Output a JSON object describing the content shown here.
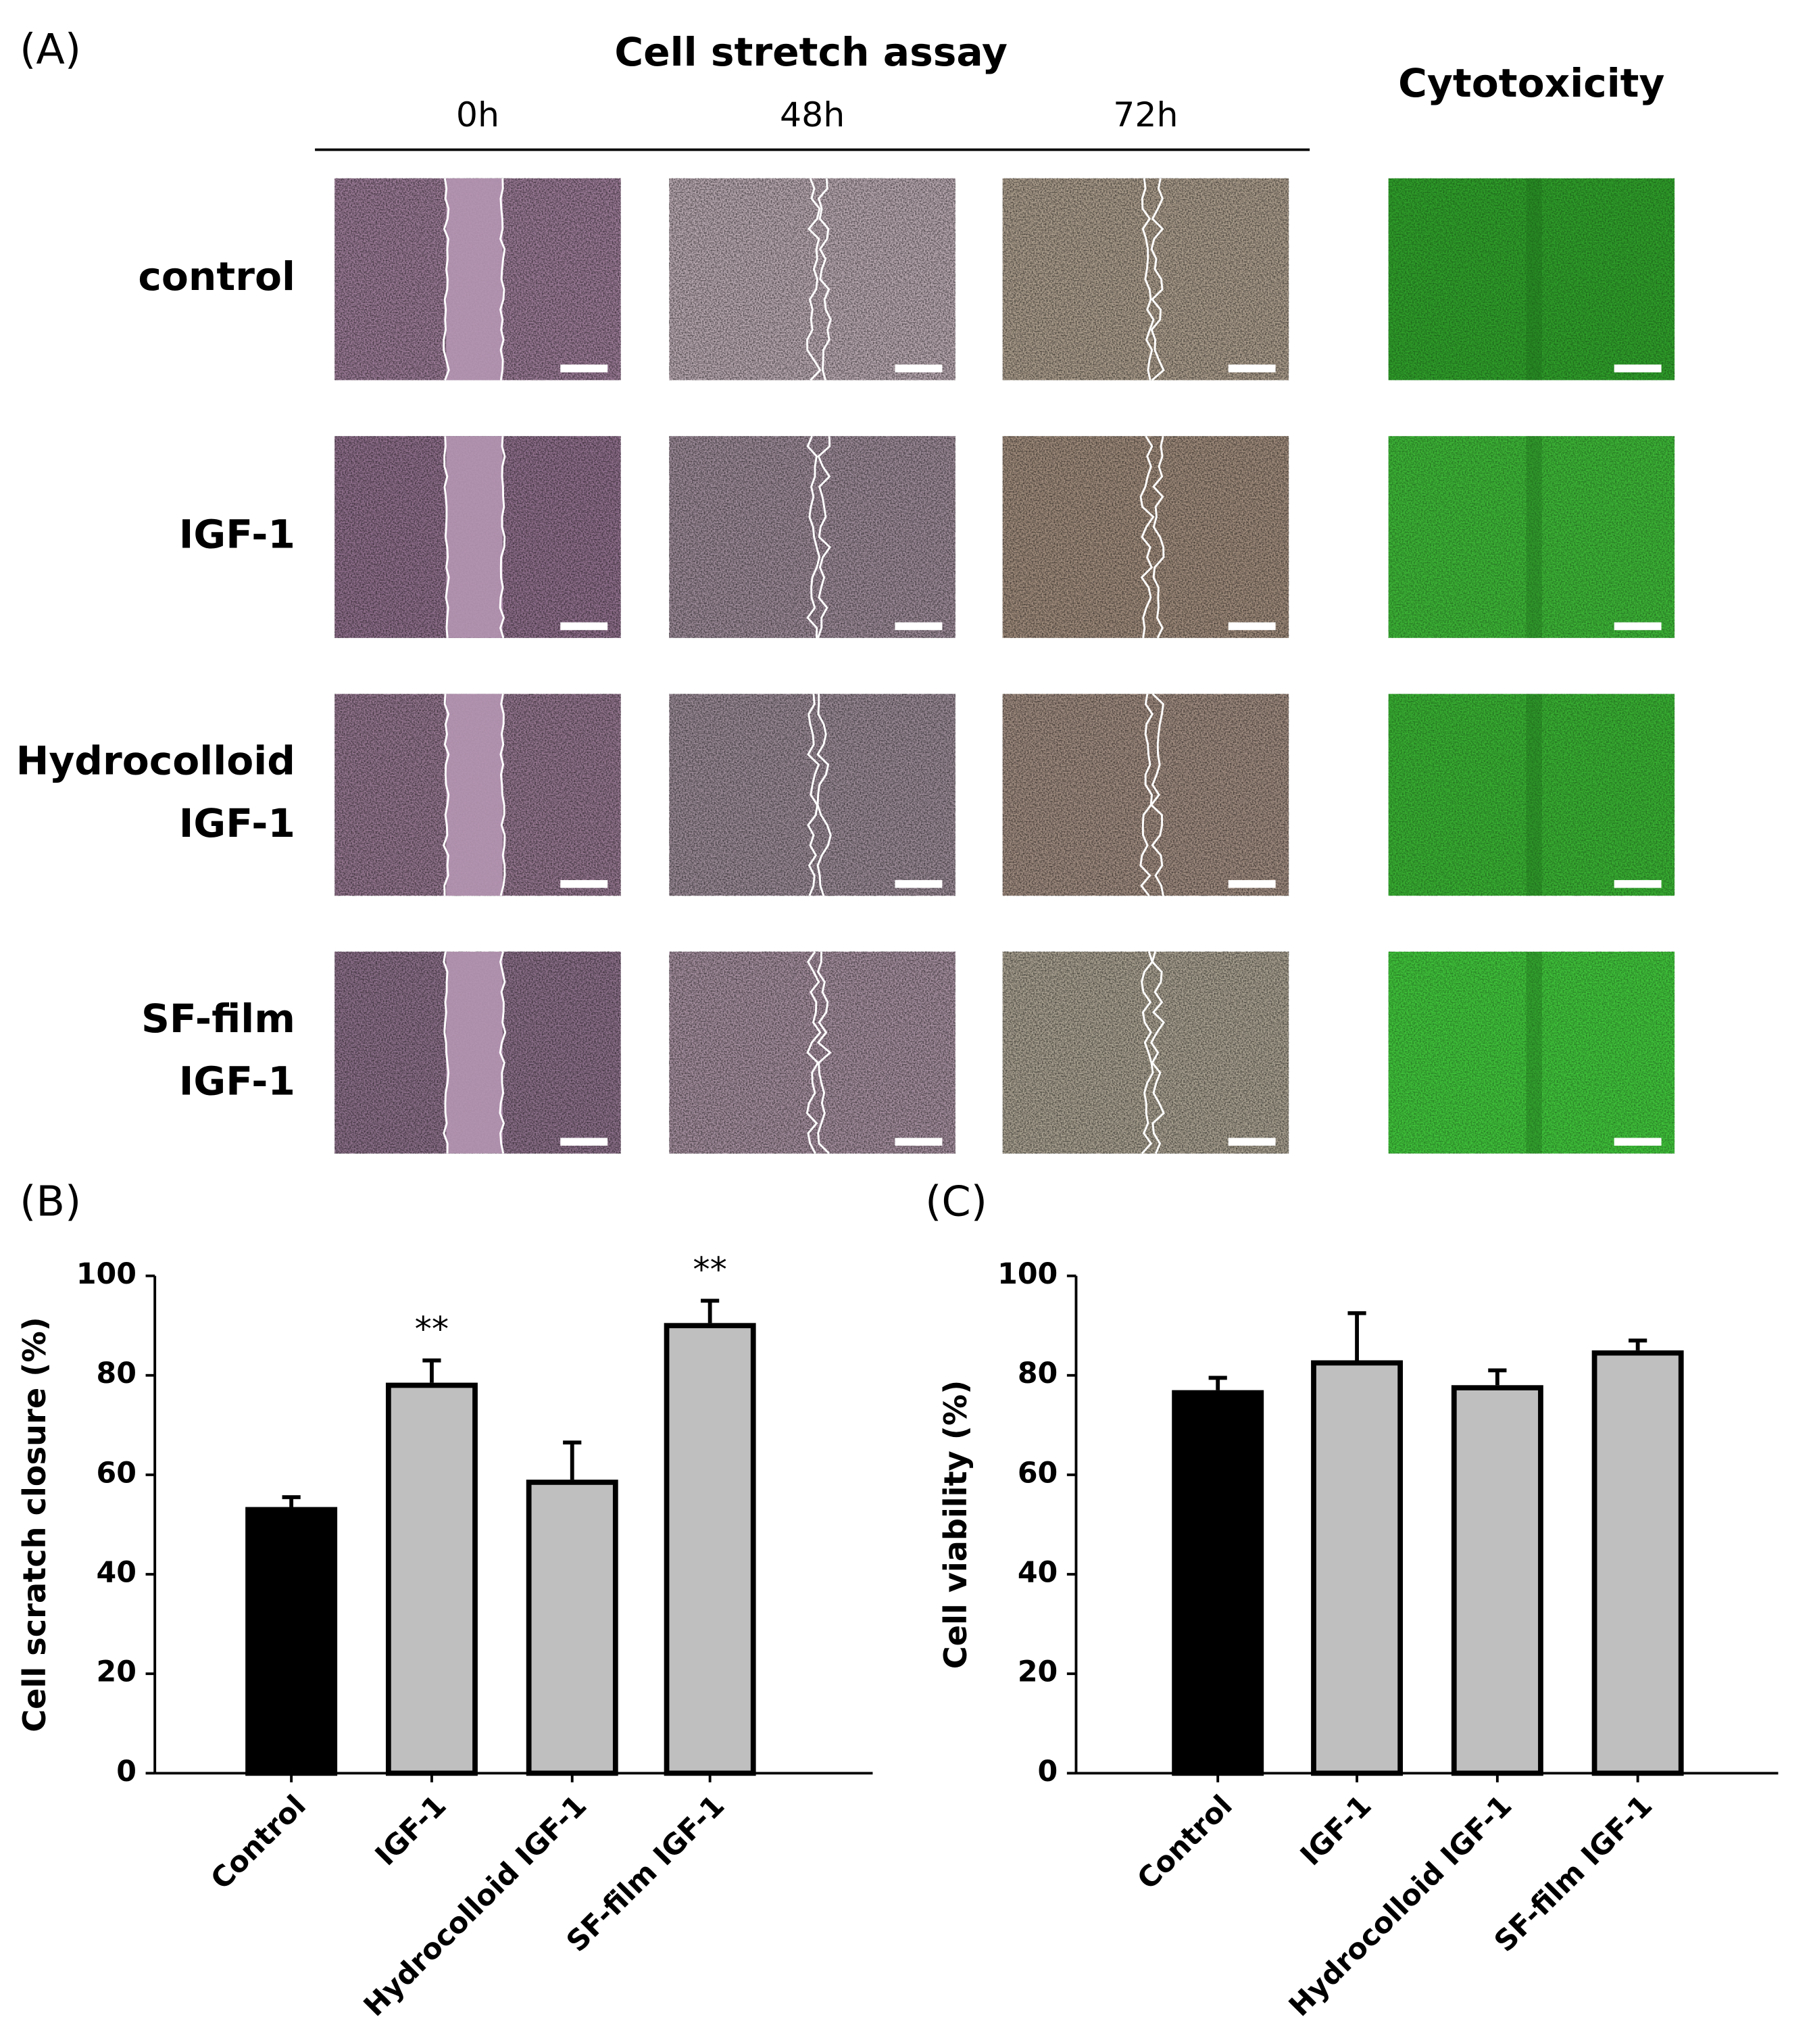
{
  "panel_a": {
    "label": "(A)",
    "title": "Cell stretch assay",
    "time_points": [
      "0h",
      "48h",
      "72h"
    ],
    "cytotoxicity_title": "Cytotoxicity",
    "rows": [
      [
        "control"
      ],
      [
        "IGF-1"
      ],
      [
        "Hydrocolloid",
        "IGF-1"
      ],
      [
        "SF-film",
        "IGF-1"
      ]
    ]
  },
  "chart_data": [
    {
      "type": "bar",
      "panel_label": "(B)",
      "ylabel": "Cell  scratch closure (%)",
      "categories": [
        "Control",
        "IGF-1",
        "Hydrocolloid IGF-1",
        "SF-film IGF-1"
      ],
      "values": [
        53,
        78,
        58.5,
        90
      ],
      "errors": [
        2.5,
        5,
        8,
        5
      ],
      "value_annotations": [
        null,
        "**",
        null,
        "**"
      ],
      "colors": [
        "#000000",
        "#bfbfbf",
        "#bfbfbf",
        "#bfbfbf"
      ],
      "ylim": [
        0,
        100
      ],
      "yticks": [
        0,
        20,
        40,
        60,
        80,
        100
      ]
    },
    {
      "type": "bar",
      "panel_label": "(C)",
      "ylabel": "Cell viability (%)",
      "categories": [
        "Control",
        "IGF-1",
        "Hydrocolloid IGF-1",
        "SF-film IGF-1"
      ],
      "values": [
        76.5,
        82.5,
        77.5,
        84.5
      ],
      "errors": [
        3,
        10,
        3.5,
        2.5
      ],
      "colors": [
        "#000000",
        "#bfbfbf",
        "#bfbfbf",
        "#bfbfbf"
      ],
      "ylim": [
        0,
        100
      ],
      "yticks": [
        0,
        20,
        40,
        60,
        80,
        100
      ]
    }
  ]
}
